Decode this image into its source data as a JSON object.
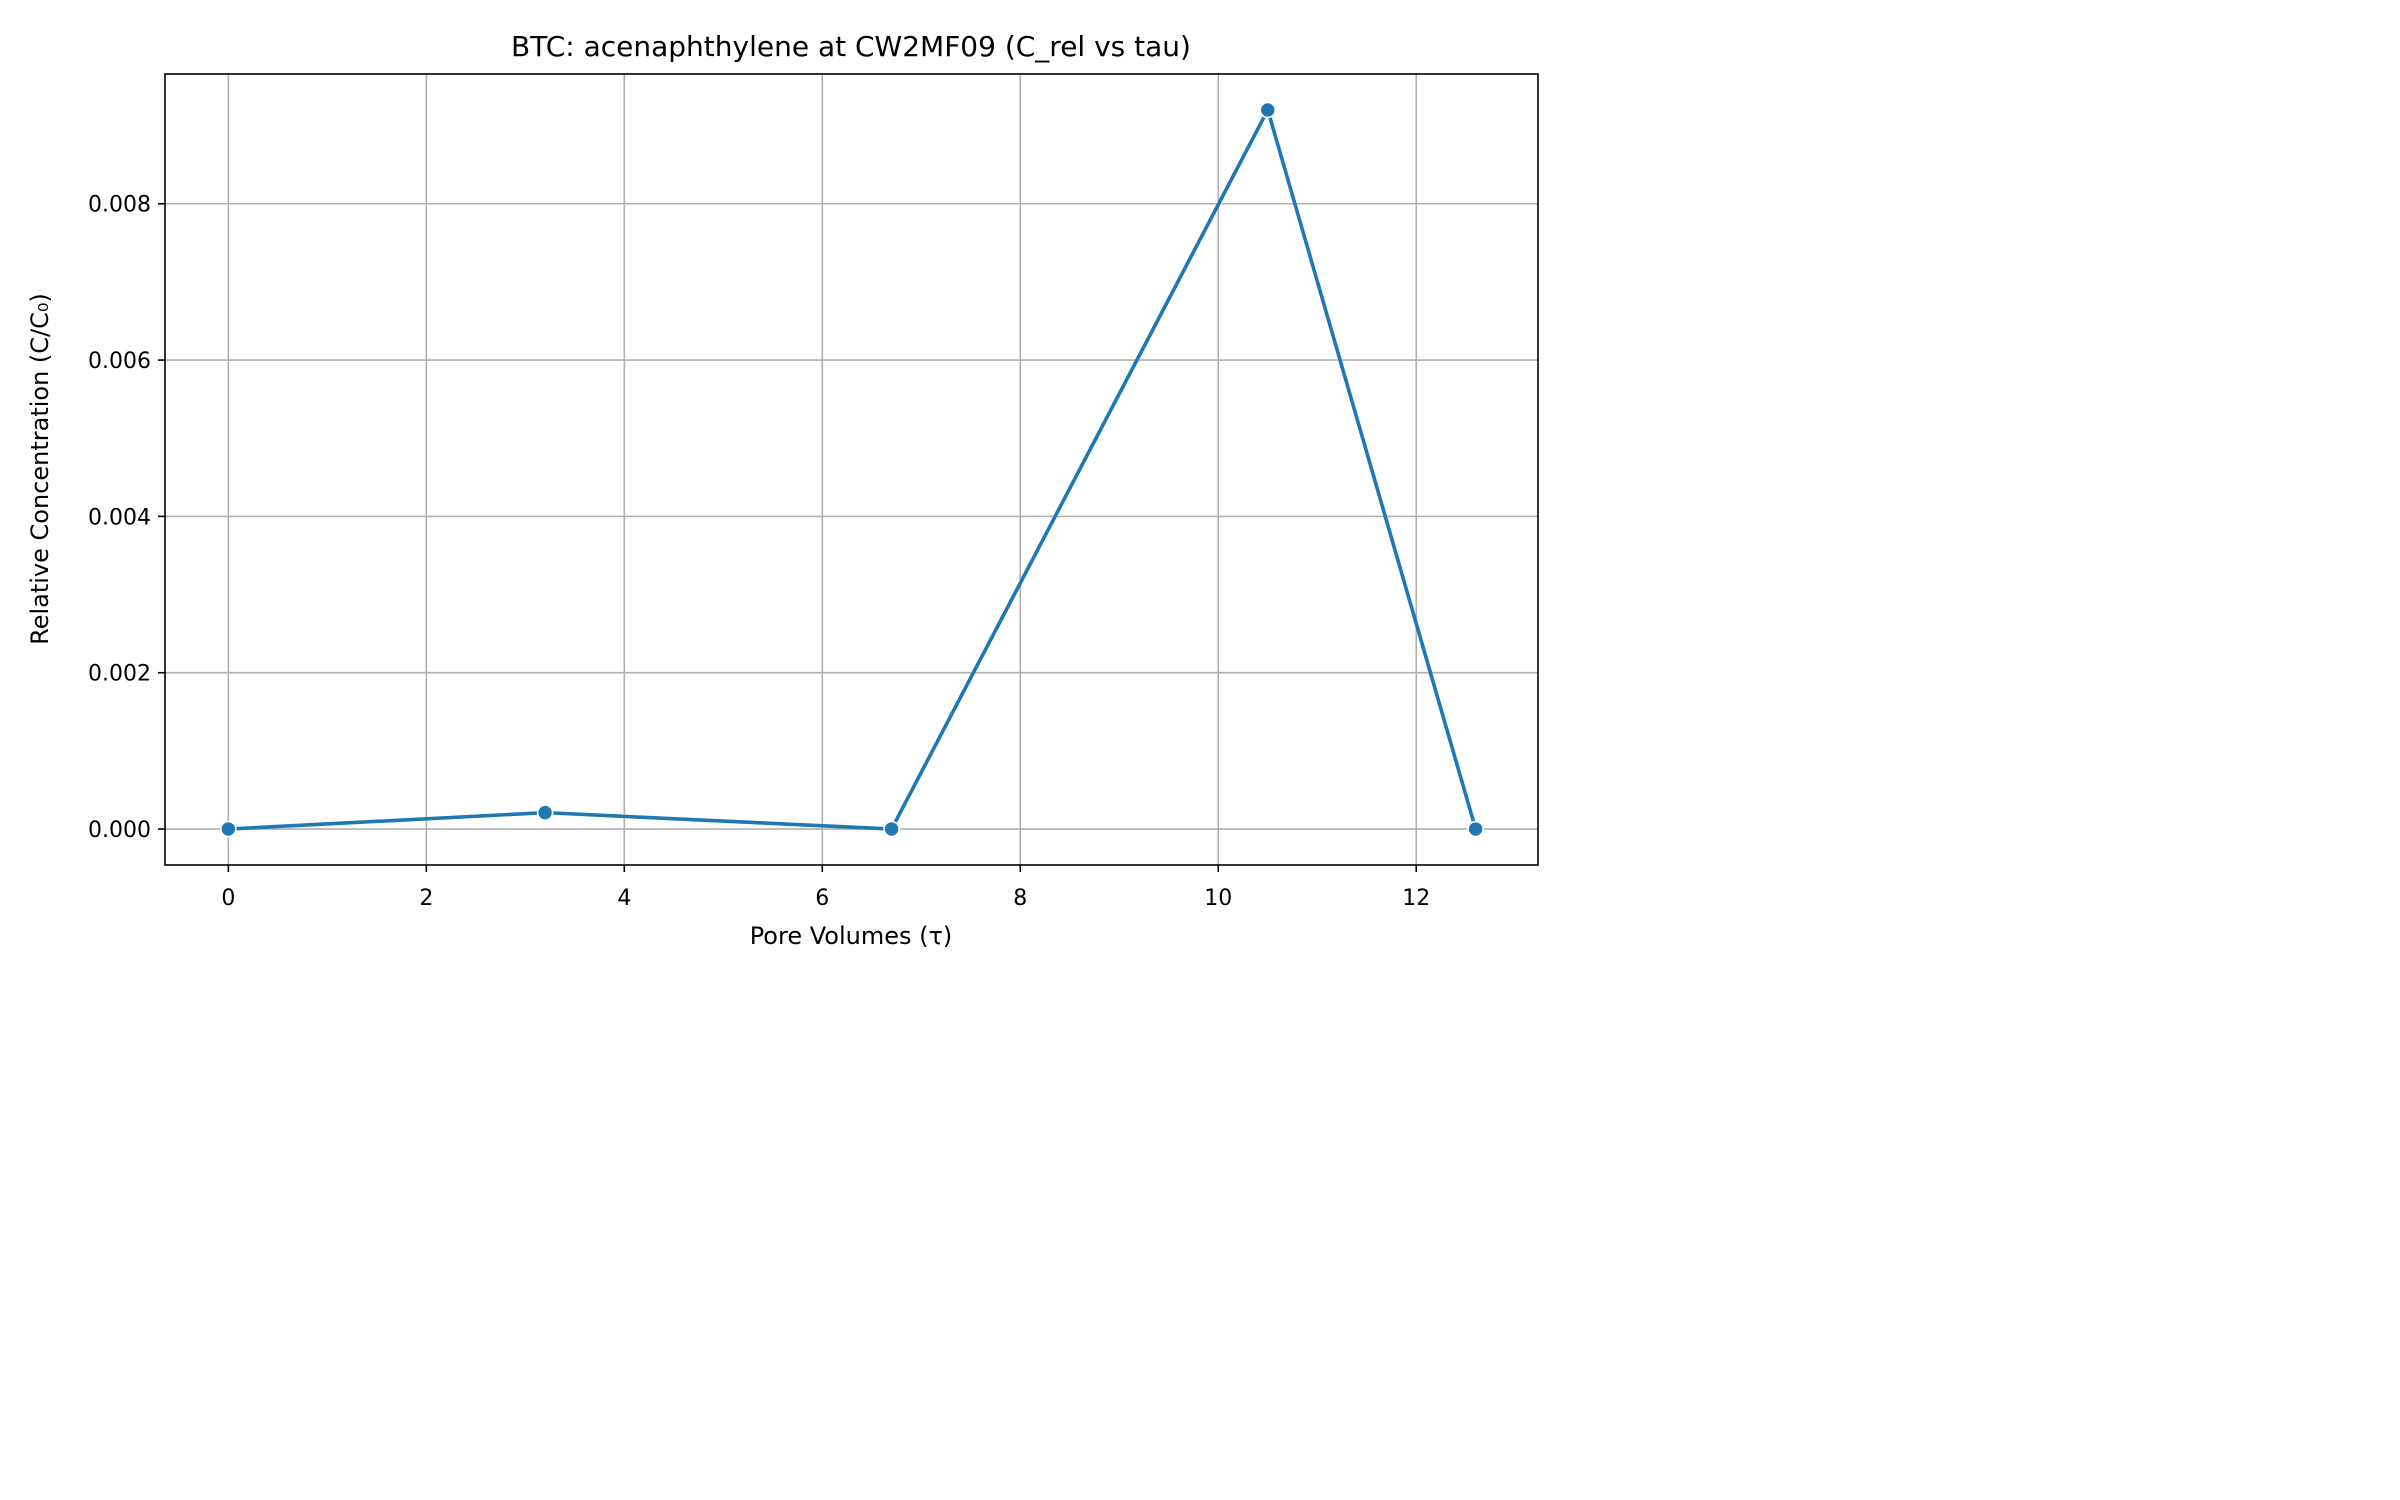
{
  "chart_data": {
    "type": "line",
    "title": "BTC: acenaphthylene at CW2MF09 (C_rel vs tau)",
    "xlabel": "Pore Volumes (τ)",
    "ylabel": "Relative Concentration (C/C₀)",
    "xlim": [
      -0.64,
      13.23
    ],
    "ylim": [
      -0.00046,
      0.00966
    ],
    "xticks": [
      0,
      2,
      4,
      6,
      8,
      10,
      12
    ],
    "xtick_labels": [
      "0",
      "2",
      "4",
      "6",
      "8",
      "10",
      "12"
    ],
    "yticks": [
      0.0,
      0.002,
      0.004,
      0.006,
      0.008
    ],
    "ytick_labels": [
      "0.000",
      "0.002",
      "0.004",
      "0.006",
      "0.008"
    ],
    "grid": true,
    "series": [
      {
        "x": [
          0.0,
          3.2,
          6.7,
          10.5,
          12.6
        ],
        "y": [
          0.0,
          0.00021,
          0.0,
          0.0092,
          0.0
        ],
        "color": "#1f77b4",
        "marker": "circle"
      }
    ]
  }
}
